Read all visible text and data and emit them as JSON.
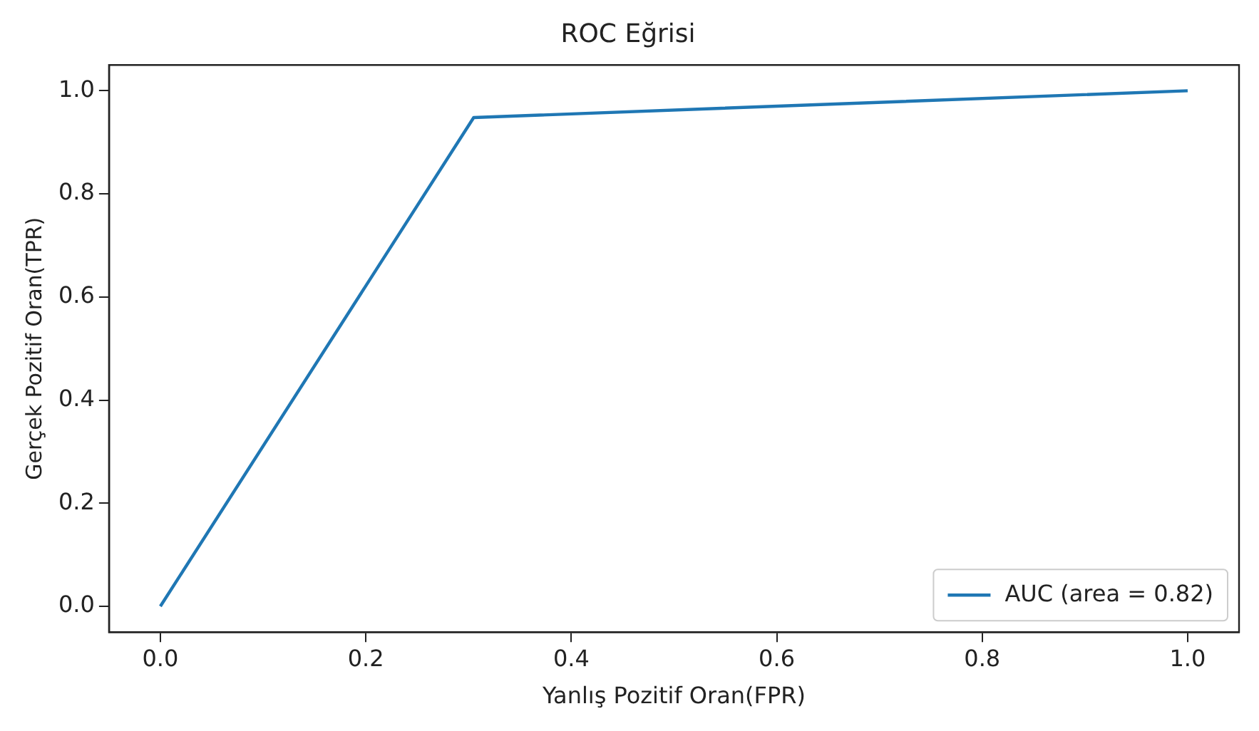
{
  "chart_data": {
    "type": "line",
    "title": "ROC Eğrisi",
    "xlabel": "Yanlış Pozitif Oran(FPR)",
    "ylabel": "Gerçek Pozitif Oran(TPR)",
    "x": [
      0,
      0.305,
      1
    ],
    "series": [
      {
        "name": "AUC (area = 0.82)",
        "color": "#1f77b4",
        "values": [
          0,
          0.948,
          1
        ]
      }
    ],
    "xlim": [
      -0.05,
      1.05
    ],
    "ylim": [
      -0.05,
      1.05
    ],
    "xticks": [
      {
        "value": 0,
        "label": "0.0"
      },
      {
        "value": 0.2,
        "label": "0.2"
      },
      {
        "value": 0.4,
        "label": "0.4"
      },
      {
        "value": 0.6,
        "label": "0.6"
      },
      {
        "value": 0.8,
        "label": "0.8"
      },
      {
        "value": 1,
        "label": "1.0"
      }
    ],
    "yticks": [
      {
        "value": 0,
        "label": "0.0"
      },
      {
        "value": 0.2,
        "label": "0.2"
      },
      {
        "value": 0.4,
        "label": "0.4"
      },
      {
        "value": 0.6,
        "label": "0.6"
      },
      {
        "value": 0.8,
        "label": "0.8"
      },
      {
        "value": 1,
        "label": "1.0"
      }
    ],
    "grid": false,
    "legend": "bottom right",
    "marker": "none",
    "line_style": "solid"
  }
}
